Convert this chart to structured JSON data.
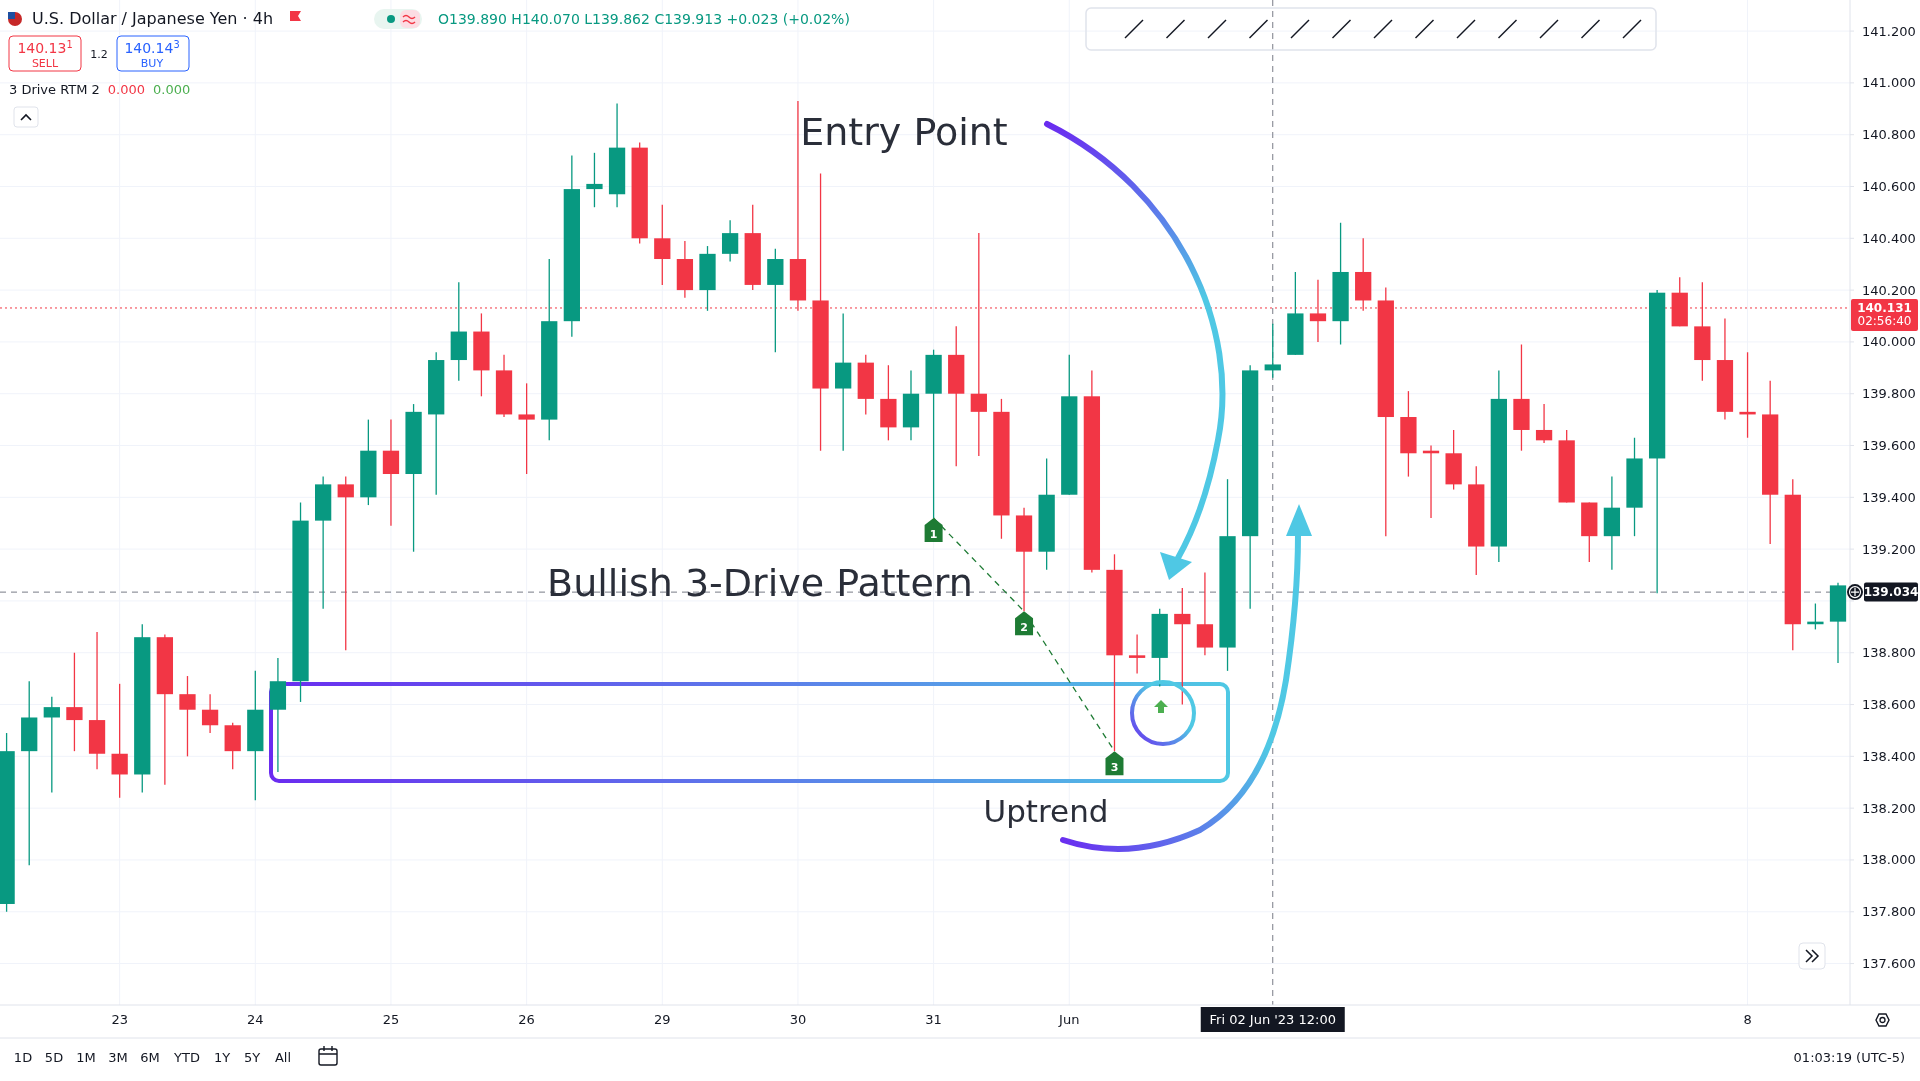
{
  "chart_data": {
    "type": "candlestick",
    "title": "U.S. Dollar / Japanese Yen · 4h",
    "subtitle": "O139.890 H140.070 L139.862 C139.913 +0.023 (+0.02%)",
    "categories": [
      null,
      null,
      null,
      null,
      null,
      "23",
      null,
      null,
      null,
      null,
      null,
      "24",
      null,
      null,
      null,
      null,
      null,
      "25",
      null,
      null,
      null,
      null,
      null,
      "26",
      null,
      null,
      null,
      null,
      null,
      "29",
      null,
      null,
      null,
      null,
      null,
      "30",
      null,
      null,
      null,
      null,
      null,
      "31",
      null,
      null,
      null,
      null,
      null,
      "Jun",
      null,
      null,
      null,
      null,
      null,
      null,
      null,
      null,
      "Fri 02 Jun '23 12:00",
      null,
      null,
      null,
      null,
      null,
      null,
      null,
      null,
      null,
      null,
      null,
      null,
      null,
      null,
      null,
      null,
      null,
      null,
      null,
      null,
      "8",
      null,
      null,
      null,
      null
    ],
    "ohlc": [
      [
        137.83,
        138.49,
        137.8,
        138.42
      ],
      [
        138.42,
        138.69,
        137.98,
        138.55
      ],
      [
        138.55,
        138.63,
        138.26,
        138.59
      ],
      [
        138.59,
        138.8,
        138.42,
        138.54
      ],
      [
        138.54,
        138.88,
        138.35,
        138.41
      ],
      [
        138.41,
        138.68,
        138.24,
        138.33
      ],
      [
        138.33,
        138.91,
        138.26,
        138.86
      ],
      [
        138.86,
        138.87,
        138.29,
        138.64
      ],
      [
        138.64,
        138.71,
        138.4,
        138.58
      ],
      [
        138.58,
        138.64,
        138.49,
        138.52
      ],
      [
        138.52,
        138.53,
        138.35,
        138.42
      ],
      [
        138.42,
        138.73,
        138.23,
        138.58
      ],
      [
        138.58,
        138.78,
        138.34,
        138.69
      ],
      [
        138.69,
        139.38,
        138.61,
        139.31
      ],
      [
        139.31,
        139.48,
        138.97,
        139.45
      ],
      [
        139.45,
        139.48,
        138.81,
        139.4
      ],
      [
        139.4,
        139.7,
        139.37,
        139.58
      ],
      [
        139.58,
        139.7,
        139.29,
        139.49
      ],
      [
        139.49,
        139.76,
        139.19,
        139.73
      ],
      [
        139.72,
        139.96,
        139.41,
        139.93
      ],
      [
        139.93,
        140.23,
        139.85,
        140.04
      ],
      [
        140.04,
        140.11,
        139.79,
        139.89
      ],
      [
        139.89,
        139.95,
        139.71,
        139.72
      ],
      [
        139.72,
        139.84,
        139.49,
        139.7
      ],
      [
        139.7,
        140.32,
        139.62,
        140.08
      ],
      [
        140.08,
        140.72,
        140.02,
        140.59
      ],
      [
        140.59,
        140.73,
        140.52,
        140.61
      ],
      [
        140.57,
        140.92,
        140.52,
        140.75
      ],
      [
        140.75,
        140.77,
        140.38,
        140.4
      ],
      [
        140.4,
        140.53,
        140.22,
        140.32
      ],
      [
        140.32,
        140.39,
        140.17,
        140.2
      ],
      [
        140.2,
        140.37,
        140.12,
        140.34
      ],
      [
        140.34,
        140.47,
        140.31,
        140.42
      ],
      [
        140.42,
        140.53,
        140.2,
        140.22
      ],
      [
        140.22,
        140.36,
        139.96,
        140.32
      ],
      [
        140.32,
        140.93,
        140.12,
        140.16
      ],
      [
        140.16,
        140.65,
        139.58,
        139.82
      ],
      [
        139.82,
        140.11,
        139.58,
        139.92
      ],
      [
        139.92,
        139.95,
        139.72,
        139.78
      ],
      [
        139.78,
        139.91,
        139.62,
        139.67
      ],
      [
        139.67,
        139.89,
        139.62,
        139.8
      ],
      [
        139.8,
        139.97,
        139.32,
        139.95
      ],
      [
        139.95,
        140.06,
        139.52,
        139.8
      ],
      [
        139.8,
        140.42,
        139.56,
        139.73
      ],
      [
        139.73,
        139.78,
        139.24,
        139.33
      ],
      [
        139.33,
        139.36,
        138.96,
        139.19
      ],
      [
        139.19,
        139.55,
        139.12,
        139.41
      ],
      [
        139.41,
        139.95,
        139.41,
        139.79
      ],
      [
        139.79,
        139.89,
        139.11,
        139.12
      ],
      [
        139.12,
        139.18,
        138.42,
        138.79
      ],
      [
        138.79,
        138.87,
        138.72,
        138.78
      ],
      [
        138.78,
        138.97,
        138.67,
        138.95
      ],
      [
        138.95,
        139.05,
        138.6,
        138.91
      ],
      [
        138.91,
        139.11,
        138.79,
        138.82
      ],
      [
        138.82,
        139.47,
        138.73,
        139.25
      ],
      [
        139.25,
        139.91,
        138.97,
        139.89
      ],
      [
        139.89,
        140.07,
        139.862,
        139.913
      ],
      [
        139.95,
        140.27,
        139.95,
        140.11
      ],
      [
        140.11,
        140.24,
        140.0,
        140.08
      ],
      [
        140.08,
        140.46,
        139.99,
        140.27
      ],
      [
        140.27,
        140.4,
        140.12,
        140.16
      ],
      [
        140.16,
        140.21,
        139.25,
        139.71
      ],
      [
        139.71,
        139.81,
        139.48,
        139.57
      ],
      [
        139.58,
        139.6,
        139.32,
        139.57
      ],
      [
        139.57,
        139.66,
        139.43,
        139.45
      ],
      [
        139.45,
        139.52,
        139.1,
        139.21
      ],
      [
        139.21,
        139.89,
        139.15,
        139.78
      ],
      [
        139.78,
        139.99,
        139.58,
        139.66
      ],
      [
        139.66,
        139.76,
        139.61,
        139.62
      ],
      [
        139.62,
        139.66,
        139.38,
        139.38
      ],
      [
        139.38,
        139.38,
        139.15,
        139.25
      ],
      [
        139.25,
        139.48,
        139.12,
        139.36
      ],
      [
        139.36,
        139.63,
        139.25,
        139.55
      ],
      [
        139.55,
        140.2,
        139.03,
        140.19
      ],
      [
        140.19,
        140.25,
        140.06,
        140.06
      ],
      [
        140.06,
        140.23,
        139.85,
        139.93
      ],
      [
        139.93,
        140.09,
        139.7,
        139.73
      ],
      [
        139.73,
        139.96,
        139.63,
        139.72
      ],
      [
        139.72,
        139.85,
        139.22,
        139.41
      ],
      [
        139.41,
        139.47,
        138.81,
        138.91
      ],
      [
        138.91,
        138.99,
        138.89,
        138.92
      ],
      [
        138.92,
        139.07,
        138.76,
        139.06
      ]
    ],
    "colors": [
      "#089981",
      "#089981",
      "#089981",
      "#f23645",
      "#f23645",
      "#f23645",
      "#089981",
      "#f23645",
      "#f23645",
      "#f23645",
      "#f23645",
      "#089981",
      "#089981",
      "#089981",
      "#089981",
      "#f23645",
      "#089981",
      "#f23645",
      "#089981",
      "#089981",
      "#089981",
      "#f23645",
      "#f23645",
      "#f23645",
      "#089981",
      "#089981",
      "#089981",
      "#089981",
      "#f23645",
      "#f23645",
      "#f23645",
      "#089981",
      "#089981",
      "#f23645",
      "#089981",
      "#f23645",
      "#f23645",
      "#089981",
      "#f23645",
      "#f23645",
      "#089981",
      "#089981",
      "#f23645",
      "#f23645",
      "#f23645",
      "#f23645",
      "#089981",
      "#089981",
      "#f23645",
      "#f23645",
      "#f23645",
      "#089981",
      "#f23645",
      "#f23645",
      "#089981",
      "#089981",
      "#089981",
      "#089981",
      "#f23645",
      "#089981",
      "#f23645",
      "#f23645",
      "#f23645",
      "#f23645",
      "#f23645",
      "#f23645",
      "#089981",
      "#f23645",
      "#f23645",
      "#f23645",
      "#f23645",
      "#089981",
      "#089981",
      "#089981",
      "#f23645",
      "#f23645",
      "#f23645",
      "#f23645",
      "#f23645",
      "#f23645",
      "#089981",
      "#089981"
    ],
    "series": [
      {
        "type": "line",
        "color": "#1e7b34",
        "line_style": "dashed",
        "values": [
          null,
          null,
          null,
          null,
          null,
          null,
          null,
          null,
          null,
          null,
          null,
          null,
          null,
          null,
          null,
          null,
          null,
          null,
          null,
          null,
          null,
          null,
          null,
          null,
          null,
          null,
          null,
          null,
          null,
          null,
          null,
          null,
          null,
          null,
          null,
          null,
          null,
          null,
          null,
          null,
          null,
          139.32,
          null,
          null,
          null,
          138.96,
          null,
          null,
          null,
          138.42,
          null,
          null,
          null,
          null,
          null,
          null,
          null,
          null,
          null,
          null,
          null,
          null,
          null,
          null,
          null,
          null,
          null,
          null,
          null,
          null,
          null,
          null,
          null,
          null,
          null,
          null,
          null,
          null,
          null,
          null,
          null,
          null
        ]
      }
    ],
    "ylim": [
      137.44,
      141.32
    ],
    "yticks": [
      {
        "value": 137.6,
        "label": "137.600"
      },
      {
        "value": 137.8,
        "label": "137.800"
      },
      {
        "value": 138.0,
        "label": "138.000"
      },
      {
        "value": 138.2,
        "label": "138.200"
      },
      {
        "value": 138.4,
        "label": "138.400"
      },
      {
        "value": 138.6,
        "label": "138.600"
      },
      {
        "value": 138.8,
        "label": "138.800"
      },
      {
        "value": 139.0,
        "label": null
      },
      {
        "value": 139.2,
        "label": "139.200"
      },
      {
        "value": 139.4,
        "label": "139.400"
      },
      {
        "value": 139.6,
        "label": "139.600"
      },
      {
        "value": 139.8,
        "label": "139.800"
      },
      {
        "value": 140.0,
        "label": "140.000"
      },
      {
        "value": 140.2,
        "label": "140.200"
      },
      {
        "value": 140.4,
        "label": "140.400"
      },
      {
        "value": 140.6,
        "label": "140.600"
      },
      {
        "value": 140.8,
        "label": "140.800"
      },
      {
        "value": 141.0,
        "label": "141.000"
      },
      {
        "value": 141.2,
        "label": "141.200"
      }
    ],
    "grid": true,
    "ref_lines": [
      {
        "axis": "y",
        "value": 140.131,
        "label": "140.131\n02:56:40",
        "color": "#f23645",
        "line_style": "dotted"
      },
      {
        "axis": "y",
        "value": 139.034,
        "label": "139.034",
        "color": "#787b86",
        "line_style": "dashed"
      },
      {
        "axis": "x",
        "value": "Fri 02 Jun '23 12:00",
        "color": "#787b86",
        "line_style": "dashed"
      }
    ],
    "annotations": [
      "140.13$^{1}$",
      "SELL",
      "1.2",
      "140.14$^{3}$",
      "BUY",
      "3 Drive RTM 2",
      "0.000",
      "0.000",
      "Entry Point",
      "Bullish 3-Drive Pattern",
      "Uptrend",
      {
        "text": "1",
        "y": 139.32
      },
      {
        "text": "2",
        "y": 138.96
      },
      {
        "text": "3",
        "y": 138.42
      },
      "1D",
      "5D",
      "1M",
      "3M",
      "6M",
      "YTD",
      "1Y",
      "5Y",
      "All",
      "01:03:19 (UTC-5)"
    ]
  }
}
